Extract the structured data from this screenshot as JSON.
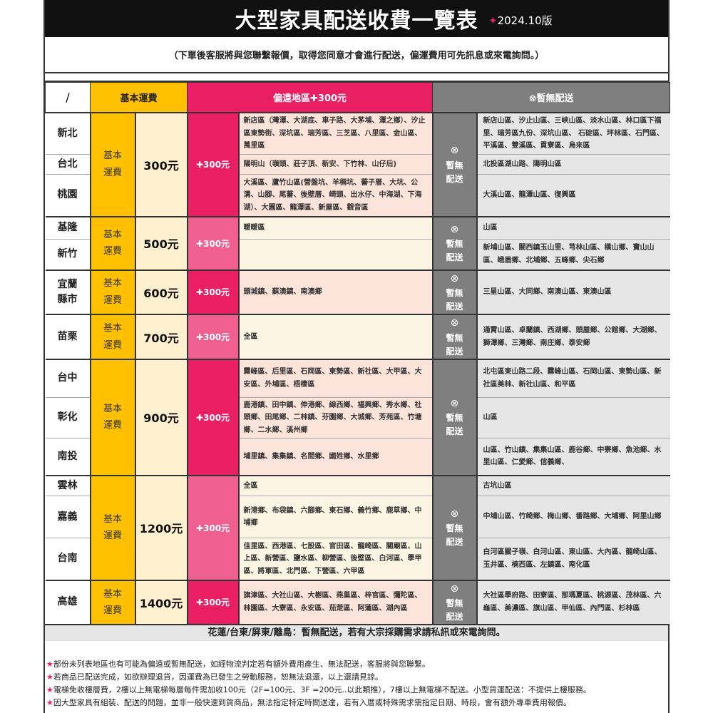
{
  "title": "大型家具配送收費一覽表",
  "version": "2024.10版",
  "subtitle": "（下單後客服將與您聯繫報價，取得您同意才會進行配送，偏運費用可先訊息或來電詢問。）",
  "header": {
    "slash": "/",
    "base": "基本運費",
    "remote": "偏遠地區✚300元",
    "none": "⊗暫無配送"
  },
  "base_label": "基本運費",
  "nodelivery_icon": "⊗",
  "nodelivery_label": "暫無配送",
  "colors": {
    "title_bg": "#111111",
    "base": "#ffc000",
    "plus_dark": "#e91e63",
    "plus_light": "#ef5f8f",
    "nodelivery": "#7f7f7f"
  },
  "groups": [
    {
      "fee": "300元",
      "plus": "✚300元",
      "cities": [
        {
          "name": "新北",
          "remote": "新店區（灣潭、大湖底、車子路、大茅埔、潭之鄉）、汐止區東勢街、深坑區、瑞芳區、三芝區、八里區、金山區、萬里區",
          "none": "新店山區、汐止山區、三峽山區、淡水山區、林口區下福里、瑞芳區九份、深坑山區、 石碇區、坪林區、石門區、平溪區、雙溪區、貢寮區、烏來區"
        },
        {
          "name": "台北",
          "remote": "陽明山（嶺頭、莊子頂、新安、下竹林、山仔后)",
          "none": "北投區湖山路、陽明山區"
        },
        {
          "name": "桃園",
          "remote": "大溪區、蘆竹山區(營盤坑、羊稠坑、蕃子厝、大坑、公溝、山腳、尾蕃、後壁厝、崎頭、出水仔、中海湖、下海湖）、大園區、龍潭區、新屋區、觀音區",
          "none": "大溪山區、龍潭山區、復興區"
        }
      ]
    },
    {
      "fee": "500元",
      "plus": "✚300元",
      "cities": [
        {
          "name": "基隆",
          "remote": "暖暖區",
          "none": "山區"
        },
        {
          "name": "新竹",
          "remote": "",
          "none": "新埔山區、關西鎮玉山里、芎林山區、橫山鄉、寶山山區、峨眉鄉、北埔鄉、五峰鄉、尖石鄉"
        }
      ]
    },
    {
      "fee": "600元",
      "plus": "✚300元",
      "cities": [
        {
          "name": "宜蘭縣市",
          "remote": "頭城鎮、蘇澳鎮、南澳鄉",
          "none": "三星山區、大同鄉、南澳山區、東澳山區"
        }
      ]
    },
    {
      "fee": "700元",
      "plus": "✚300元",
      "cities": [
        {
          "name": "苗栗",
          "remote": "全區",
          "none": "通霄山區、卓蘭鎮、西湖鄉、頭屋鄉、公館鄉、大湖鄉、獅潭鄉、三灣鄉、南庄鄉、泰安鄉"
        }
      ]
    },
    {
      "fee": "900元",
      "plus": "✚300元",
      "cities": [
        {
          "name": "台中",
          "remote": "霧峰區、后里區、石岡區、東勢區、新社區、大甲區、大安區、外埔區、梧棲區",
          "none": "北屯區東山路二段、霧峰山區、石岡山區、東勢山區、新社區美林、新社山區、和平區"
        },
        {
          "name": "彰化",
          "remote": "鹿港鎮、田中鎮、伸港鄉、線西鄉、福興鄉、秀水鄉、社頭鄉、田尾鄉、二林鎮、芬園鄉、大城鄉、芳苑區、竹塘鄉、二水鄉、溪州鄉",
          "none": "山區"
        },
        {
          "name": "南投",
          "remote": "埔里鎮、集集鎮、名間鄉、國姓鄉、水里鄉",
          "none": "山區、竹山鎮、集集山區、鹿谷鄉、中寮鄉、魚池鄉、水里山區、仁愛鄉、信義鄉、"
        }
      ]
    },
    {
      "fee": "1200元",
      "plus": "✚300元",
      "cities": [
        {
          "name": "雲林",
          "remote": "全區",
          "none": "古坑山區"
        },
        {
          "name": "嘉義",
          "remote": "新港鄉、布袋鎮、六腳鄉、東石鄉、義竹鄉、鹿草鄉、中埔鄉",
          "none": "中埔山區、竹崎鄉、梅山鄉、番路鄉、大埔鄉、阿里山鄉"
        },
        {
          "name": "台南",
          "remote": "佳里區、西港區、七股區、官田區、龍崎區、關廟區、山上區、新營區、鹽水區、柳營區、後壁區、白河區、學甲區、將軍區、北門區、下營區、六甲區",
          "none": "白河區關子嶺、白河山區、東山區、大內區、龍崎山區、玉井區、楠西區、左鎮區、南化區"
        }
      ]
    },
    {
      "fee": "1400元",
      "plus": "✚300元",
      "cities": [
        {
          "name": "高雄",
          "remote": "旗津區、大社山區、大樹區、燕巢區、梓官區、彌陀區、 林園區、大寮區、永安區、茄萣區、阿蓮區、湖內區",
          "none": "大社區學府路、田寮區、那瑪夏區、桃源區、茂林區、六龜區、美濃區、旗山區、甲仙區、內門區、杉林區"
        }
      ]
    }
  ],
  "footer": "花蓮/台東/屏東/離島：暫無配送，若有大宗採購需求請私訊或來電詢問。",
  "note_star": "★",
  "notes": [
    "部份未列表地區也有可能為偏遠或暫無配送，如經物流判定若有額外費用產生、無法配送，客服將與您聯繫。",
    "若商品已配送完成，如欲辦理退貨，因運費為已發生之勞動服務，恕無法退還，以上還請見諒。",
    "電梯免收樓層費，2樓以上無電梯每層每件需加收100元（2F=100元、3F =200元..以此類推），7樓以上無電梯不配送。小型貨運配送：不提供上樓服務。",
    "因大型家具有組裝、配送的問題，並非一般快速到貨商品，無法指定特定時間送達，若有入厝或特殊需求需指定日期、時段，會有額外專車費用報價。"
  ]
}
